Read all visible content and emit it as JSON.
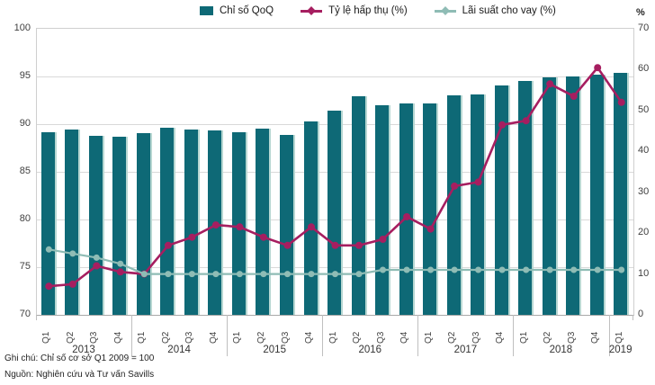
{
  "chart_data": {
    "type": "bar",
    "combo": true,
    "categories": [
      "2013 Q1",
      "2013 Q2",
      "2013 Q3",
      "2013 Q4",
      "2014 Q1",
      "2014 Q2",
      "2014 Q3",
      "2014 Q4",
      "2015 Q1",
      "2015 Q2",
      "2015 Q3",
      "2015 Q4",
      "2016 Q1",
      "2016 Q2",
      "2016 Q3",
      "2016 Q4",
      "2017 Q1",
      "2017 Q2",
      "2017 Q3",
      "2017 Q4",
      "2018 Q1",
      "2018 Q2",
      "2018 Q3",
      "2018 Q4",
      "2019 Q1"
    ],
    "years": [
      {
        "label": "2013",
        "quarters": [
          "Q1",
          "Q2",
          "Q3",
          "Q4"
        ]
      },
      {
        "label": "2014",
        "quarters": [
          "Q1",
          "Q2",
          "Q3",
          "Q4"
        ]
      },
      {
        "label": "2015",
        "quarters": [
          "Q1",
          "Q2",
          "Q3",
          "Q4"
        ]
      },
      {
        "label": "2016",
        "quarters": [
          "Q1",
          "Q2",
          "Q3",
          "Q4"
        ]
      },
      {
        "label": "2017",
        "quarters": [
          "Q1",
          "Q2",
          "Q3",
          "Q4"
        ]
      },
      {
        "label": "2018",
        "quarters": [
          "Q1",
          "Q2",
          "Q3",
          "Q4"
        ]
      },
      {
        "label": "2019",
        "quarters": [
          "Q1"
        ]
      }
    ],
    "series": [
      {
        "name": "Chỉ số QoQ",
        "kind": "bar",
        "axis": "left",
        "color": "#0e6976",
        "values": [
          89.2,
          89.4,
          88.8,
          88.7,
          89.1,
          89.6,
          89.4,
          89.3,
          89.2,
          89.5,
          88.9,
          90.3,
          91.4,
          92.9,
          92.0,
          92.2,
          92.2,
          93.0,
          93.1,
          94.1,
          94.5,
          94.9,
          95.0,
          95.2,
          95.4
        ]
      },
      {
        "name": "Tỷ lệ hấp thụ (%)",
        "kind": "line",
        "axis": "right",
        "color": "#a61e60",
        "values": [
          7,
          7.5,
          12,
          10.5,
          10,
          17,
          19,
          22,
          21.5,
          19,
          17,
          21.5,
          17,
          17,
          18.5,
          24,
          21,
          31.5,
          32.5,
          46.5,
          47.5,
          56.5,
          53.5,
          60.5,
          52
        ]
      },
      {
        "name": "Lãi suất cho vay (%)",
        "kind": "line",
        "axis": "right",
        "color": "#8fbcb5",
        "values": [
          16,
          15,
          14,
          12.5,
          10,
          10,
          10,
          10,
          10,
          10,
          10,
          10,
          10,
          10,
          11,
          11,
          11,
          11,
          11,
          11,
          11,
          11,
          11,
          11,
          11
        ]
      }
    ],
    "left_axis": {
      "min": 70,
      "max": 100,
      "ticks": [
        100,
        95,
        90,
        85,
        80,
        75,
        70
      ]
    },
    "right_axis": {
      "min": 0,
      "max": 70,
      "ticks": [
        70,
        60,
        50,
        40,
        30,
        20,
        10,
        0
      ],
      "unit": "%"
    },
    "grid": "horizontal",
    "legend_position": "top"
  },
  "footnotes": [
    "Ghi chú: Chỉ số cơ sở Q1 2009 = 100",
    "Nguồn: Nghiên cứu và Tư vấn Savills"
  ]
}
